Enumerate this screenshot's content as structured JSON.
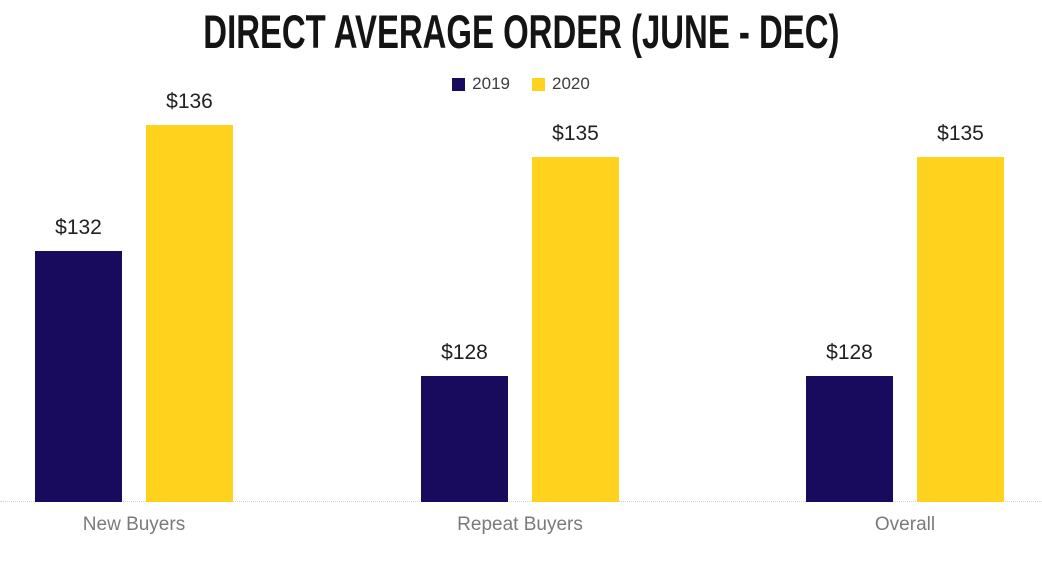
{
  "chart_data": {
    "type": "bar",
    "title": "DIRECT AVERAGE ORDER (JUNE - DEC)",
    "categories": [
      "New Buyers",
      "Repeat Buyers",
      "Overall"
    ],
    "series": [
      {
        "name": "2019",
        "color": "#180B5E",
        "values": [
          132,
          128,
          128
        ]
      },
      {
        "name": "2020",
        "color": "#FFD21E",
        "values": [
          136,
          135,
          135
        ]
      }
    ],
    "value_prefix": "$",
    "data_labels": true,
    "ylim": [
      124,
      137
    ],
    "grid": false,
    "legend_position": "top",
    "axis_line_color": "#d4d4d4",
    "category_label_color": "#7a7a7a",
    "data_label_color": "#212121",
    "title_color": "#141414"
  }
}
